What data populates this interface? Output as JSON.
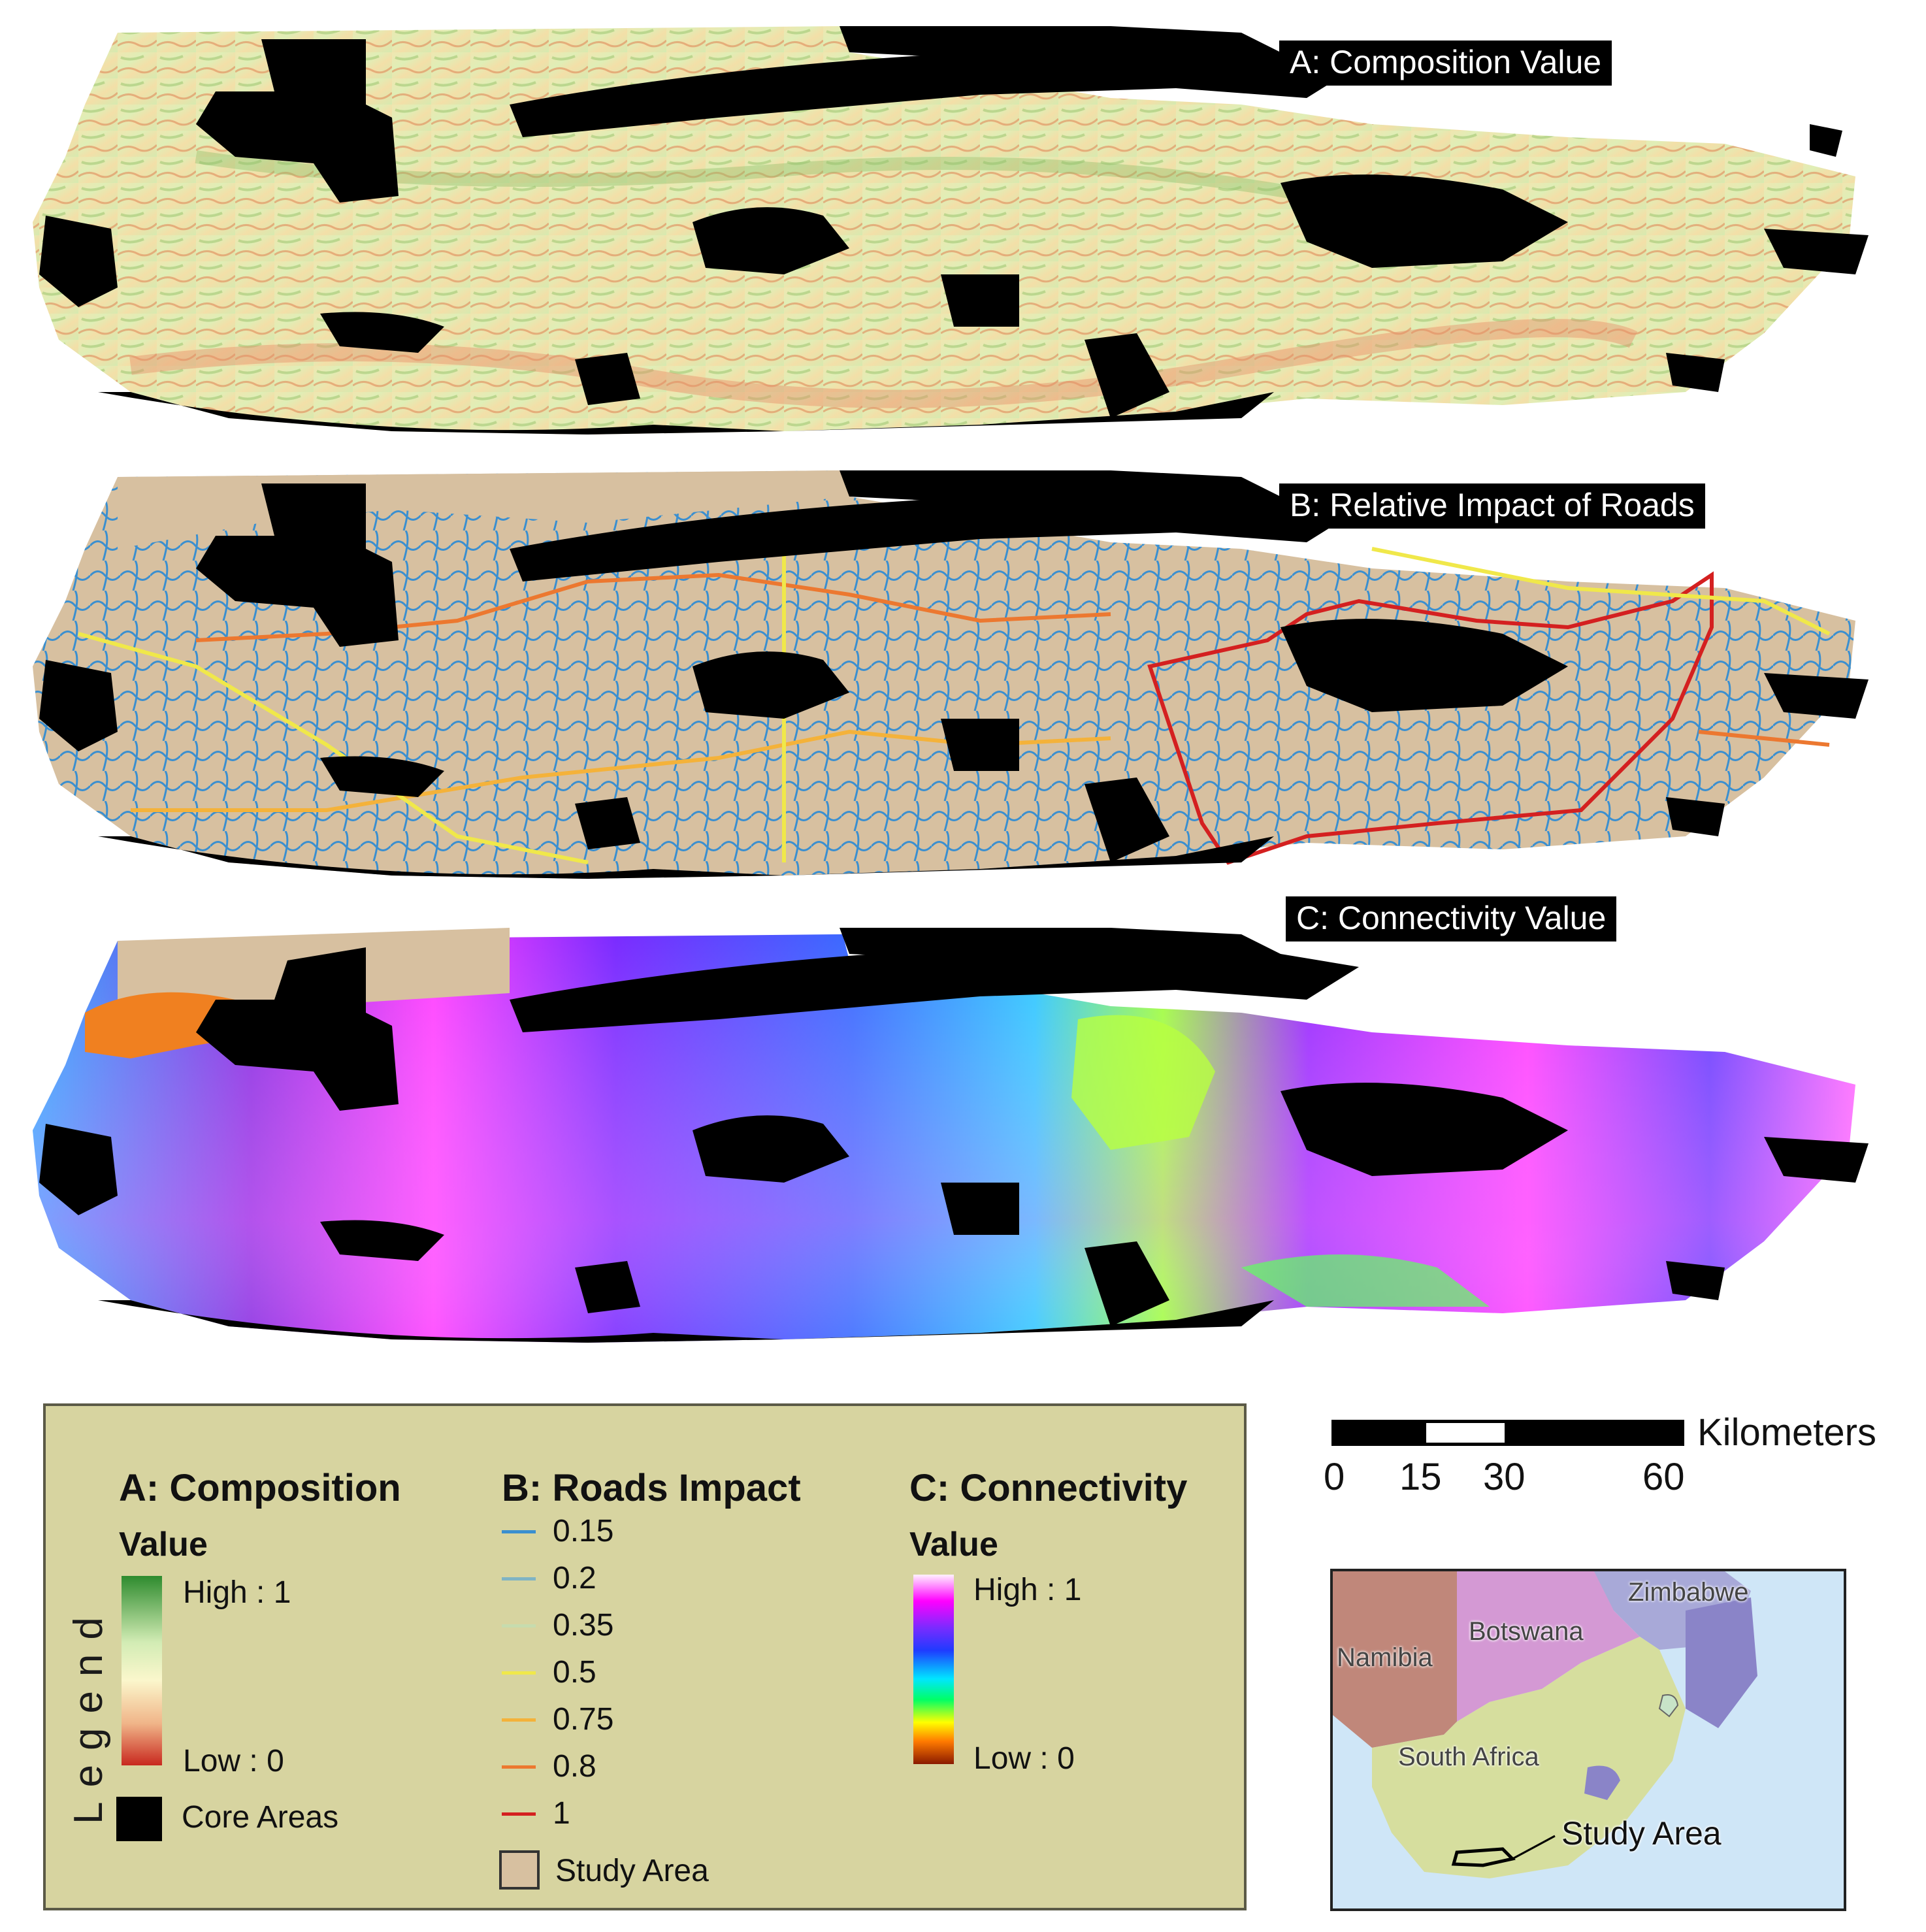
{
  "panels": [
    {
      "id": "A",
      "title": "A: Composition Value"
    },
    {
      "id": "B",
      "title": "B: Relative Impact of Roads"
    },
    {
      "id": "C",
      "title": "C: Connectivity Value"
    }
  ],
  "legend": {
    "word": "Legend",
    "composition": {
      "heading": "A: Composition",
      "subheading": "Value",
      "high": "High : 1",
      "low": "Low : 0",
      "core_label": "Core Areas",
      "ramp_colors": [
        "#2e8b2e",
        "#d2ecb4",
        "#fbf7cc",
        "#f0b488",
        "#c8281e"
      ]
    },
    "roads": {
      "heading": "B: Roads Impact",
      "classes": [
        {
          "label": "0.15",
          "color": "#3a8fd0"
        },
        {
          "label": "0.2",
          "color": "#7fb4c4"
        },
        {
          "label": "0.35",
          "color": "#c7dcae"
        },
        {
          "label": "0.5",
          "color": "#f0e84a"
        },
        {
          "label": "0.75",
          "color": "#f4b23a"
        },
        {
          "label": "0.8",
          "color": "#ec7830"
        },
        {
          "label": "1",
          "color": "#d42020"
        }
      ],
      "study_area_label": "Study Area",
      "study_area_color": "#d7c0a0"
    },
    "connectivity": {
      "heading": "C: Connectivity",
      "subheading": "Value",
      "high": "High : 1",
      "low": "Low : 0",
      "ramp_colors": [
        "#fff2ff",
        "#ff00ff",
        "#7a2bff",
        "#1f3bff",
        "#00e6ff",
        "#00ff66",
        "#ffff00",
        "#ff7a00",
        "#8a1a00"
      ]
    }
  },
  "scale": {
    "unit": "Kilometers",
    "ticks": [
      "0",
      "15",
      "30",
      "60"
    ]
  },
  "inset": {
    "countries": [
      "Namibia",
      "Botswana",
      "Zimbabwe",
      "South Africa"
    ],
    "study_area_label": "Study Area"
  }
}
